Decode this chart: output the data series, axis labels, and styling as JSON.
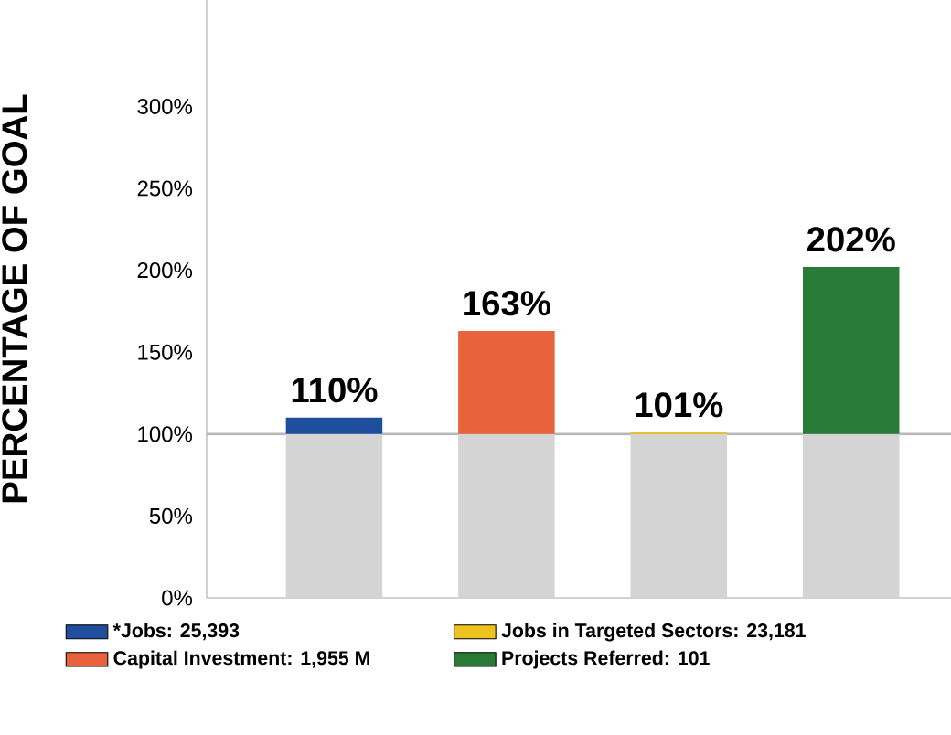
{
  "chart_data": {
    "type": "bar",
    "stacked": true,
    "ylabel": "PERCENTAGE OF GOAL",
    "categories": [
      null,
      null,
      null,
      null
    ],
    "ylim": [
      0,
      365
    ],
    "yticks": [
      {
        "value": 0,
        "label": "0%"
      },
      {
        "value": 50,
        "label": "50%"
      },
      {
        "value": 100,
        "label": "100%"
      },
      {
        "value": 150,
        "label": "150%"
      },
      {
        "value": 200,
        "label": "200%"
      },
      {
        "value": 250,
        "label": "250%"
      },
      {
        "value": 300,
        "label": "300%"
      }
    ],
    "series": [
      {
        "color": "#d4d4d4",
        "values": [
          100,
          100,
          100,
          100
        ]
      },
      {
        "name": "*Jobs: 25,393",
        "color": "#1f4e9c",
        "values": [
          10,
          null,
          null,
          null
        ]
      },
      {
        "name": "Capital Investment: 1,955 M",
        "color": "#e8633b",
        "values": [
          null,
          63,
          null,
          null
        ]
      },
      {
        "name": "Jobs in Targeted Sectors: 23,181",
        "color": "#eec21f",
        "values": [
          null,
          null,
          1,
          null
        ]
      },
      {
        "name": "Projects Referred: 101",
        "color": "#2a7a37",
        "values": [
          null,
          null,
          null,
          102
        ]
      }
    ],
    "totals": [
      "110%",
      "163%",
      "101%",
      "202%"
    ],
    "ref_lines": [
      {
        "axis": "y",
        "value": 100,
        "color": "#b8b8b8"
      }
    ],
    "legend": "bottom"
  }
}
